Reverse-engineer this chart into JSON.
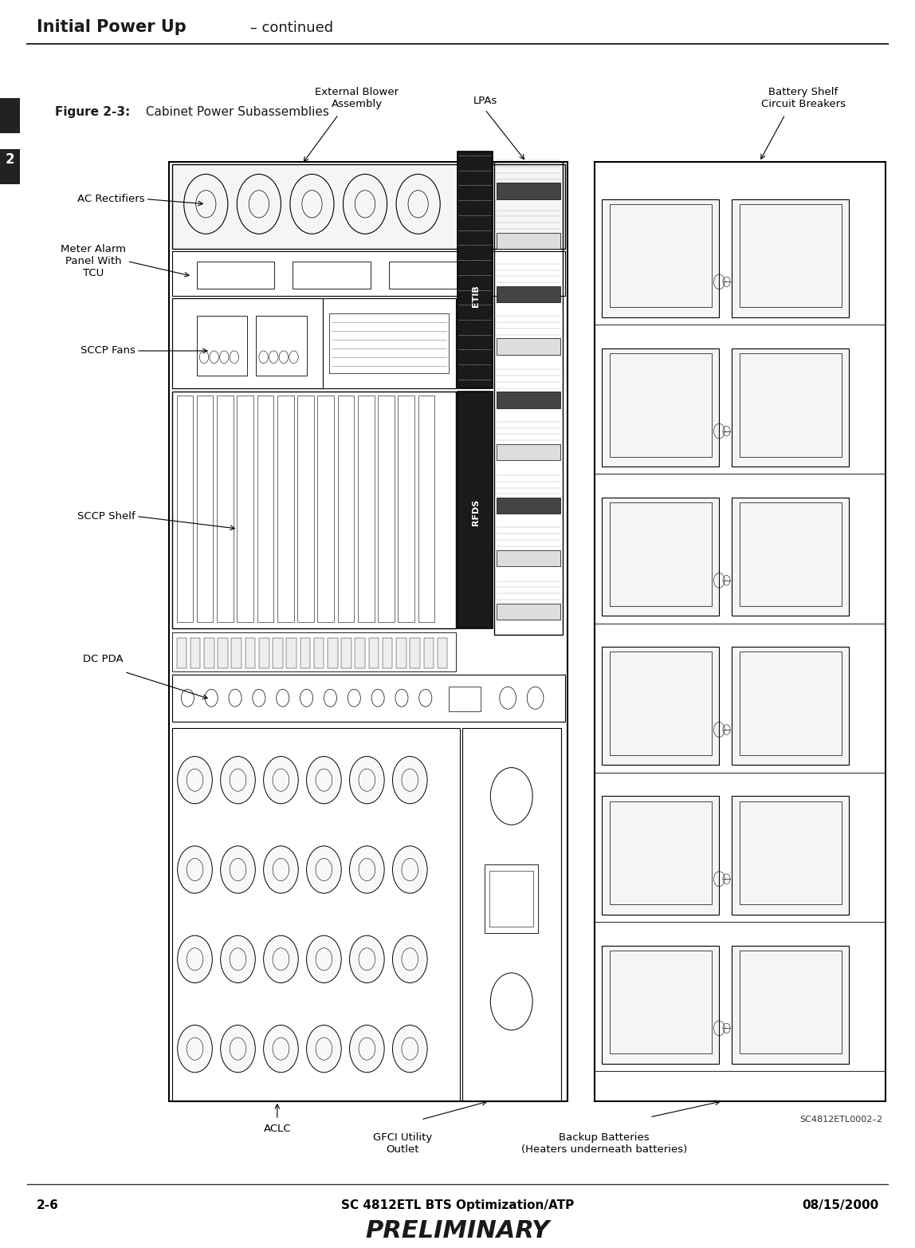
{
  "page_title_bold": "Initial Power Up",
  "page_title_normal": " – continued",
  "figure_label_bold": "Figure 2-3:",
  "figure_label_normal": " Cabinet Power Subassemblies",
  "footer_left": "2-6",
  "footer_center": "SC 4812ETL BTS Optimization/ATP",
  "footer_right": "08/15/2000",
  "footer_preliminary": "PRELIMINARY",
  "figure_ref": "SC4812ETL0002–2",
  "chapter_num": "2",
  "bg_color": "#ffffff",
  "line_color": "#000000"
}
